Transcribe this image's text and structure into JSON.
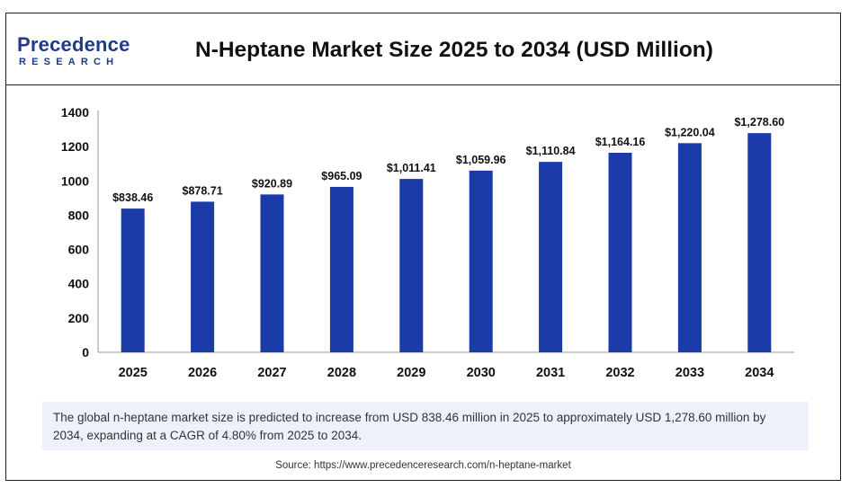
{
  "logo": {
    "name": "Precedence",
    "sub": "RESEARCH"
  },
  "title": "N-Heptane Market Size 2025 to 2034 (USD Million)",
  "chart_data": {
    "type": "bar",
    "categories": [
      "2025",
      "2026",
      "2027",
      "2028",
      "2029",
      "2030",
      "2031",
      "2032",
      "2033",
      "2034"
    ],
    "values": [
      838.46,
      878.71,
      920.89,
      965.09,
      1011.41,
      1059.96,
      1110.84,
      1164.16,
      1220.04,
      1278.6
    ],
    "value_labels": [
      "$838.46",
      "$878.71",
      "$920.89",
      "$965.09",
      "$1,011.41",
      "$1,059.96",
      "$1,110.84",
      "$1,164.16",
      "$1,220.04",
      "$1,278.60"
    ],
    "ylim": [
      0,
      1400
    ],
    "yticks": [
      0,
      200,
      400,
      600,
      800,
      1000,
      1200,
      1400
    ],
    "bar_color": "#1a3ba8",
    "grid": false,
    "xlabel": "",
    "ylabel": ""
  },
  "note": "The global n-heptane market size is predicted to increase from USD 838.46 million in 2025 to approximately USD 1,278.60 million by 2034, expanding at a CAGR of 4.80% from 2025 to 2034.",
  "source": "Source: https://www.precedenceresearch.com/n-heptane-market"
}
